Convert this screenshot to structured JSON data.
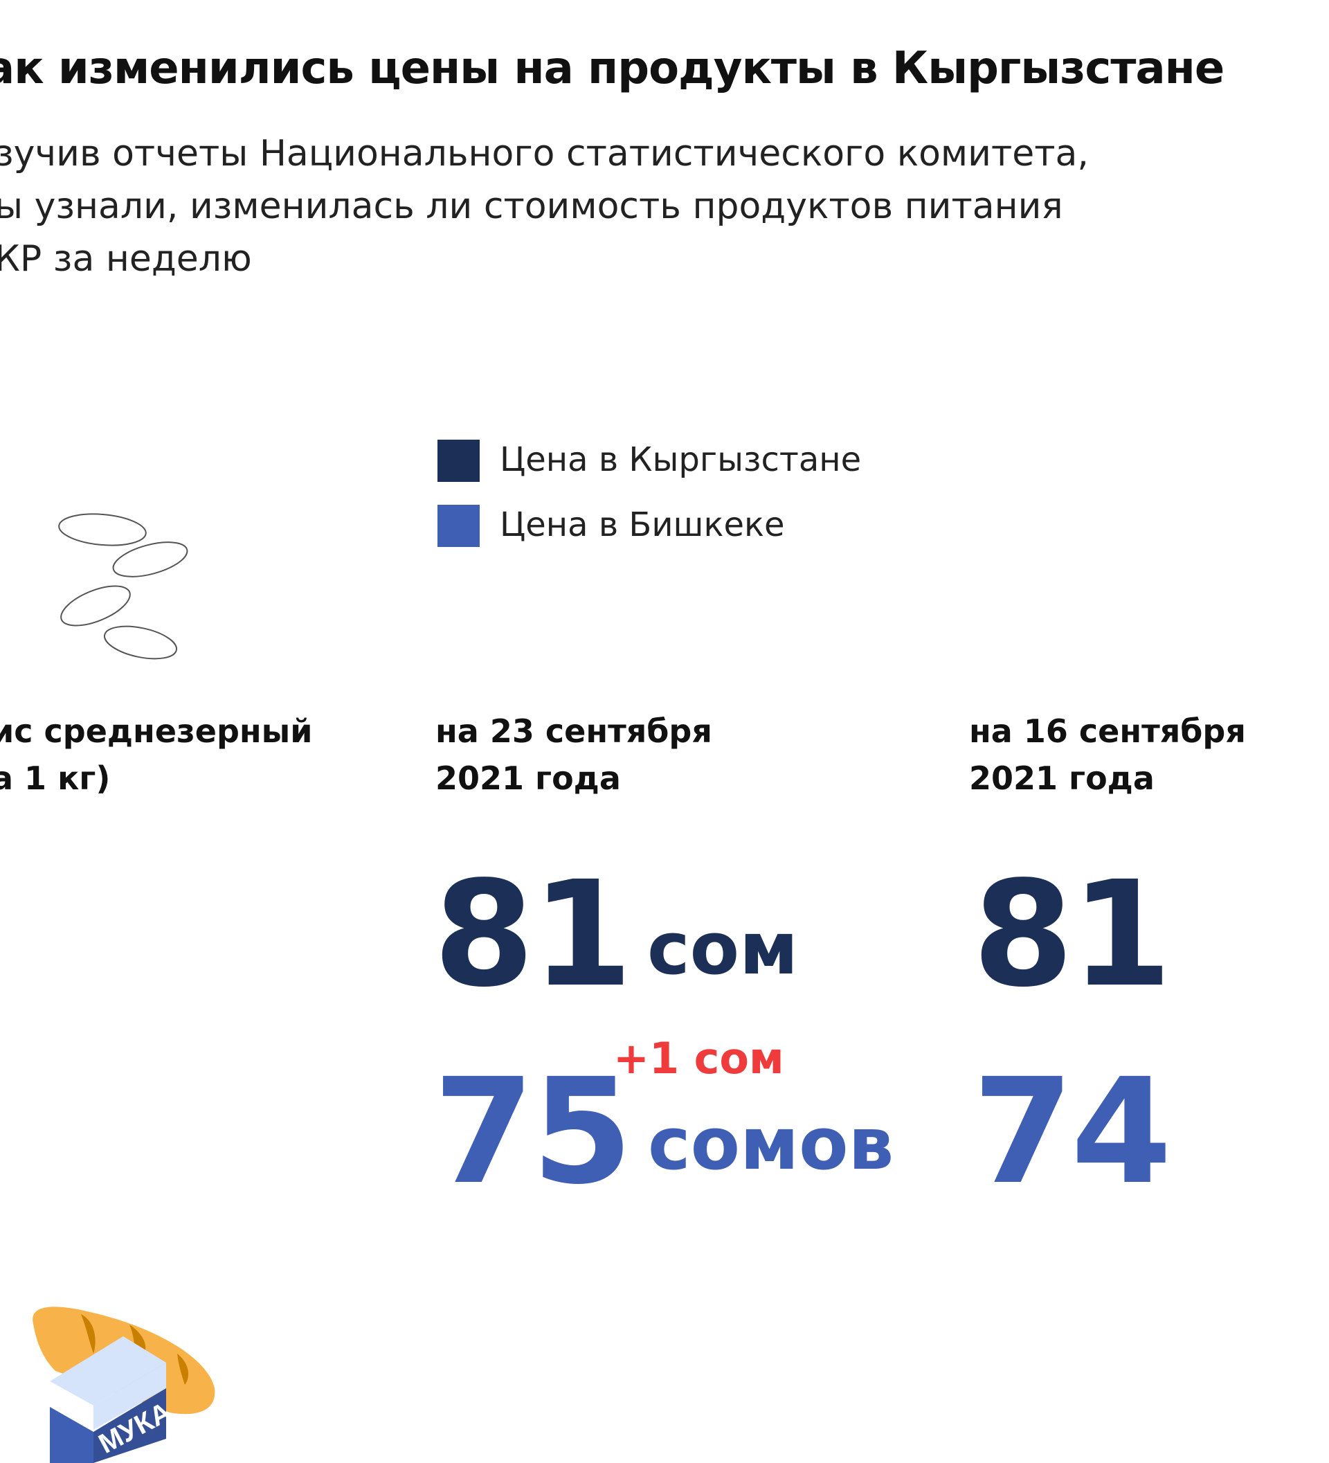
{
  "title": "ак изменились цены на продукты в Кыргызстане",
  "subtitle_lines": [
    "зучив отчеты Национального статистического комитета,",
    "ы узнали, изменилась ли стоимость продуктов питания",
    "КР за неделю"
  ],
  "legend": [
    {
      "label": "Цена в Кыргызстане",
      "color": "#1c2f56"
    },
    {
      "label": "Цена в Бишкеке",
      "color": "#3f5fb5"
    }
  ],
  "product": {
    "name_line1": "ис среднезерный",
    "name_line2": "а 1 кг)",
    "icon": "rice-grains-icon"
  },
  "columns": [
    {
      "date_line1": "на 23 сентября",
      "date_line2": "2021 года",
      "kg_value": "81",
      "kg_unit": "сом",
      "bishkek_value": "75",
      "bishkek_unit": "сомов"
    },
    {
      "date_line1": "на 16 сентября",
      "date_line2": "2021 года",
      "kg_value": "81",
      "bishkek_value": "74"
    }
  ],
  "change": "+1 сом",
  "next_product": {
    "icon": "flour-bread-icon",
    "label": "МУКА"
  },
  "colors": {
    "navy": "#1c2f56",
    "blue": "#3f5fb5",
    "red": "#ef3b3b",
    "bread": "#f8b24a"
  }
}
